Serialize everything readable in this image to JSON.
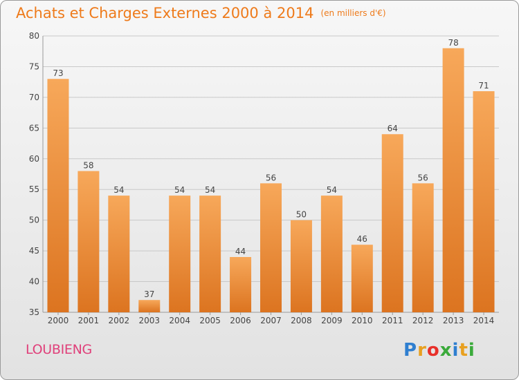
{
  "header": {
    "title": "Achats et Charges Externes 2000 à 2014",
    "unit": "(en milliers d'€)"
  },
  "footer": {
    "commune": "LOUBIENG",
    "brand": "Proxiti"
  },
  "colors": {
    "title": "#ee7a1a",
    "commune": "#e0407a",
    "bar_light": "#f7a85a",
    "bar_dark": "#dc7420",
    "grid": "#c8c8c8"
  },
  "brand_letter_colors": [
    "#2f7fd0",
    "#e8a020",
    "#e8302a",
    "#3aaa3a",
    "#2f7fd0",
    "#e8a020",
    "#3aaa3a"
  ],
  "chart_data": {
    "type": "bar",
    "categories": [
      "2000",
      "2001",
      "2002",
      "2003",
      "2004",
      "2005",
      "2006",
      "2007",
      "2008",
      "2009",
      "2010",
      "2011",
      "2012",
      "2013",
      "2014"
    ],
    "values": [
      73,
      58,
      54,
      37,
      54,
      54,
      44,
      56,
      50,
      54,
      46,
      64,
      56,
      78,
      71
    ],
    "title": "Achats et Charges Externes 2000 à 2014",
    "unit": "(en milliers d'€)",
    "ylim": [
      35,
      80
    ],
    "yticks": [
      35,
      40,
      45,
      50,
      55,
      60,
      65,
      70,
      75,
      80
    ],
    "grid": true,
    "legend": "none"
  }
}
